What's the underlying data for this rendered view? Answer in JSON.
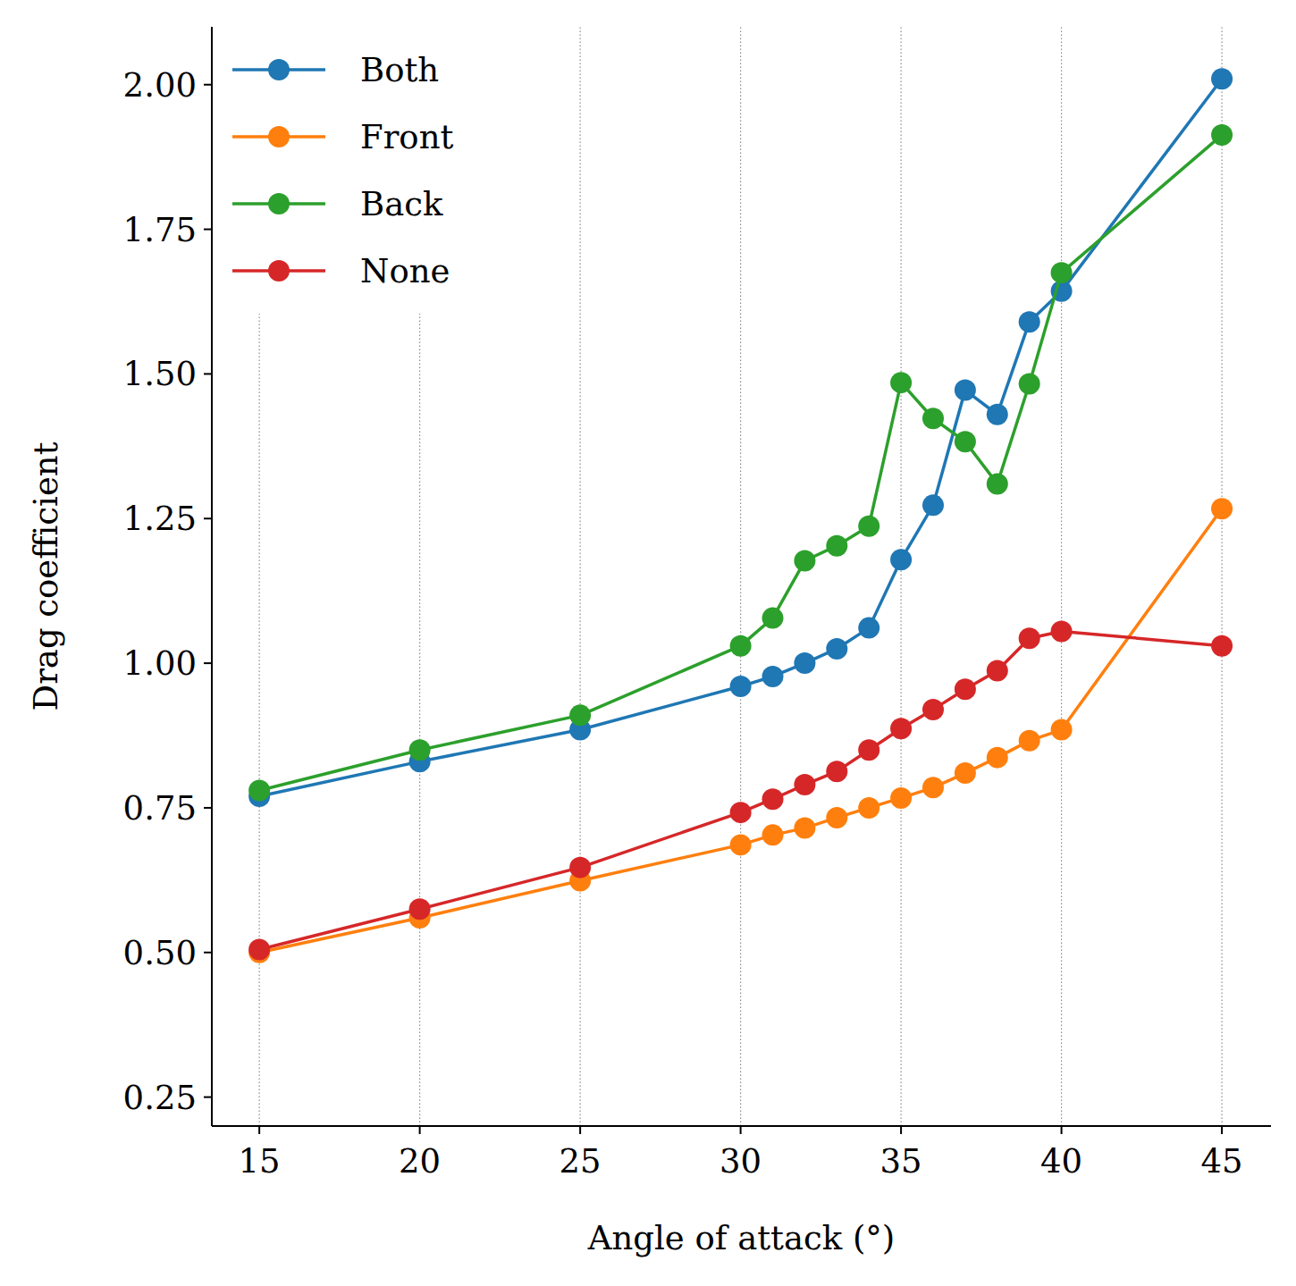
{
  "chart_data": {
    "type": "line",
    "x_label": "Angle of attack (°)",
    "y_label": "Drag coefficient",
    "x": [
      15,
      20,
      25,
      30,
      31,
      32,
      33,
      34,
      35,
      36,
      37,
      38,
      39,
      40,
      45
    ],
    "series": [
      {
        "name": "Both",
        "color": "#1f77b4",
        "marker": "circle",
        "line_style": "solid",
        "values": [
          0.77,
          0.83,
          0.885,
          0.96,
          0.977,
          1.0,
          1.025,
          1.061,
          1.179,
          1.273,
          1.472,
          1.43,
          1.59,
          1.643,
          2.01
        ]
      },
      {
        "name": "Front",
        "color": "#ff7f0e",
        "marker": "circle",
        "line_style": "solid",
        "values": [
          0.5,
          0.56,
          0.624,
          0.686,
          0.703,
          0.715,
          0.733,
          0.75,
          0.767,
          0.785,
          0.81,
          0.837,
          0.866,
          0.885,
          1.267
        ]
      },
      {
        "name": "Back",
        "color": "#2ca02c",
        "marker": "circle",
        "line_style": "solid",
        "values": [
          0.78,
          0.85,
          0.91,
          1.03,
          1.078,
          1.177,
          1.203,
          1.237,
          1.485,
          1.423,
          1.383,
          1.31,
          1.483,
          1.675,
          1.913
        ]
      },
      {
        "name": "None",
        "color": "#d62728",
        "marker": "circle",
        "line_style": "solid",
        "values": [
          0.505,
          0.575,
          0.647,
          0.742,
          0.765,
          0.79,
          0.813,
          0.85,
          0.887,
          0.92,
          0.955,
          0.987,
          1.043,
          1.055,
          1.03
        ]
      }
    ],
    "xlim": [
      13.52,
      46.53
    ],
    "ylim": [
      0.2,
      2.1
    ],
    "xticks": [
      15,
      20,
      25,
      30,
      35,
      40,
      45
    ],
    "yticks": [
      0.25,
      {
        "value": 0.5,
        "label": "0.50"
      },
      0.75,
      {
        "value": 1.0,
        "label": "1.00"
      },
      1.25,
      {
        "value": 1.5,
        "label": "1.50"
      },
      1.75,
      {
        "value": 2.0,
        "label": "2.00"
      }
    ],
    "grid": "x",
    "legend": "upper left"
  }
}
